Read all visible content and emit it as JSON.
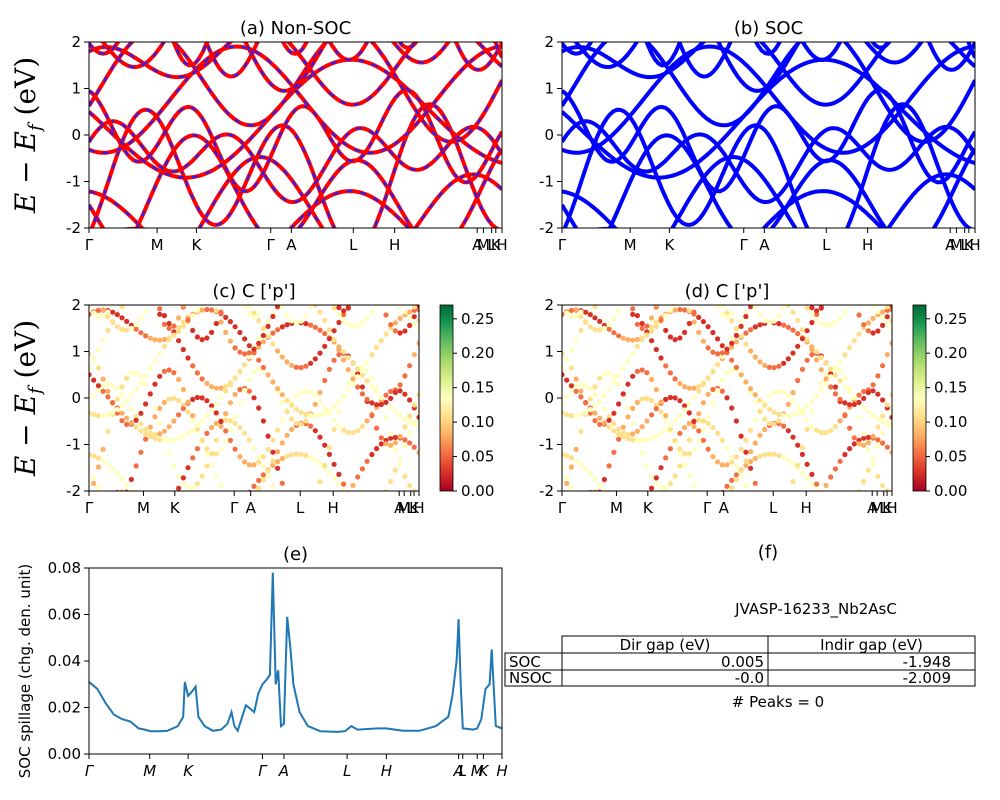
{
  "chart_data": [
    {
      "id": "a",
      "type": "line",
      "title": "(a) Non-SOC",
      "ylabel_parts": [
        "E − E",
        "f",
        " (eV)"
      ],
      "ylim": [
        -2,
        2
      ],
      "yticks": [
        -2,
        -1,
        0,
        1,
        2
      ],
      "kpath_labels": [
        "Γ",
        "M",
        "K",
        "Γ",
        "A",
        "L",
        "H",
        "A",
        "M",
        "L",
        "K",
        "H"
      ],
      "kpath_positions": [
        0,
        0.165,
        0.26,
        0.44,
        0.49,
        0.64,
        0.74,
        0.94,
        0.955,
        0.975,
        0.985,
        1.0
      ],
      "series_colors": [
        "#ff0000",
        "#2020ff"
      ]
    },
    {
      "id": "b",
      "type": "line",
      "title": "(b) SOC",
      "ylim": [
        -2,
        2
      ],
      "yticks": [
        -2,
        -1,
        0,
        1,
        2
      ],
      "kpath_labels": [
        "Γ",
        "M",
        "K",
        "Γ",
        "A",
        "L",
        "H",
        "A",
        "M",
        "L",
        "K",
        "H"
      ],
      "kpath_positions": [
        0,
        0.165,
        0.26,
        0.44,
        0.49,
        0.64,
        0.74,
        0.94,
        0.955,
        0.975,
        0.985,
        1.0
      ],
      "series_colors": [
        "#0000ff"
      ]
    },
    {
      "id": "c",
      "type": "scatter",
      "title": "(c)  C ['p']",
      "ylabel_parts": [
        "E − E",
        "f",
        " (eV)"
      ],
      "ylim": [
        -2,
        2
      ],
      "yticks": [
        -2,
        -1,
        0,
        1,
        2
      ],
      "kpath_labels": [
        "Γ",
        "M",
        "K",
        "Γ",
        "A",
        "L",
        "H",
        "A",
        "M",
        "L",
        "K",
        "H"
      ],
      "kpath_positions": [
        0,
        0.165,
        0.26,
        0.44,
        0.49,
        0.64,
        0.74,
        0.94,
        0.955,
        0.975,
        0.985,
        1.0
      ],
      "colorbar": {
        "min": 0.0,
        "max": 0.27,
        "ticks": [
          "0.00",
          "0.05",
          "0.10",
          "0.15",
          "0.20",
          "0.25"
        ],
        "colormap": "RdYlGn"
      }
    },
    {
      "id": "d",
      "type": "scatter",
      "title": "(d) C ['p']",
      "ylim": [
        -2,
        2
      ],
      "yticks": [
        -2,
        -1,
        0,
        1,
        2
      ],
      "kpath_labels": [
        "Γ",
        "M",
        "K",
        "Γ",
        "A",
        "L",
        "H",
        "A",
        "M",
        "L",
        "K",
        "H"
      ],
      "kpath_positions": [
        0,
        0.165,
        0.26,
        0.44,
        0.49,
        0.64,
        0.74,
        0.94,
        0.955,
        0.975,
        0.985,
        1.0
      ],
      "colorbar": {
        "min": 0.0,
        "max": 0.27,
        "ticks": [
          "0.00",
          "0.05",
          "0.10",
          "0.15",
          "0.20",
          "0.25"
        ],
        "colormap": "RdYlGn"
      }
    },
    {
      "id": "e",
      "type": "line",
      "title": "(e)",
      "ylabel": "SOC spillage (chg. den. unit)",
      "ylim": [
        0,
        0.08
      ],
      "yticks": [
        "0.00",
        "0.02",
        "0.04",
        "0.06",
        "0.08"
      ],
      "kpath_labels": [
        "Γ",
        "M",
        "K",
        "Γ",
        "A",
        "L",
        "H",
        "A",
        "L",
        "M",
        "K",
        "H"
      ],
      "kpath_positions": [
        0,
        0.147,
        0.24,
        0.42,
        0.472,
        0.625,
        0.72,
        0.895,
        0.905,
        0.94,
        0.955,
        1.0
      ],
      "x": [
        0,
        0.02,
        0.04,
        0.06,
        0.08,
        0.1,
        0.12,
        0.135,
        0.15,
        0.17,
        0.19,
        0.215,
        0.228,
        0.232,
        0.24,
        0.25,
        0.258,
        0.265,
        0.28,
        0.3,
        0.32,
        0.335,
        0.345,
        0.352,
        0.36,
        0.38,
        0.4,
        0.41,
        0.42,
        0.43,
        0.438,
        0.445,
        0.452,
        0.458,
        0.465,
        0.472,
        0.48,
        0.488,
        0.495,
        0.51,
        0.53,
        0.56,
        0.6,
        0.62,
        0.635,
        0.65,
        0.7,
        0.72,
        0.76,
        0.8,
        0.84,
        0.87,
        0.88,
        0.89,
        0.895,
        0.9,
        0.905,
        0.93,
        0.94,
        0.95,
        0.96,
        0.97,
        0.975,
        0.985,
        1.0
      ],
      "values": [
        0.031,
        0.028,
        0.022,
        0.017,
        0.015,
        0.014,
        0.011,
        0.0105,
        0.0098,
        0.0098,
        0.01,
        0.012,
        0.016,
        0.031,
        0.025,
        0.027,
        0.029,
        0.016,
        0.012,
        0.01,
        0.0105,
        0.013,
        0.018,
        0.012,
        0.01,
        0.021,
        0.018,
        0.026,
        0.03,
        0.032,
        0.034,
        0.078,
        0.03,
        0.036,
        0.012,
        0.013,
        0.059,
        0.045,
        0.03,
        0.018,
        0.012,
        0.0098,
        0.0095,
        0.0098,
        0.012,
        0.0105,
        0.011,
        0.011,
        0.01,
        0.01,
        0.012,
        0.016,
        0.025,
        0.04,
        0.058,
        0.03,
        0.011,
        0.0105,
        0.011,
        0.015,
        0.028,
        0.03,
        0.045,
        0.012,
        0.011
      ],
      "series_colors": [
        "#1f77b4"
      ]
    }
  ],
  "panel_f": {
    "title": "(f)",
    "material": "JVASP-16233_Nb2AsC",
    "headers": [
      "Dir gap (eV)",
      "Indir gap (eV)"
    ],
    "rows": [
      {
        "label": "SOC",
        "dir": "0.005",
        "indir": "-1.948"
      },
      {
        "label": "NSOC",
        "dir": "-0.0",
        "indir": "-2.009"
      }
    ],
    "peaks": "# Peaks = 0"
  }
}
